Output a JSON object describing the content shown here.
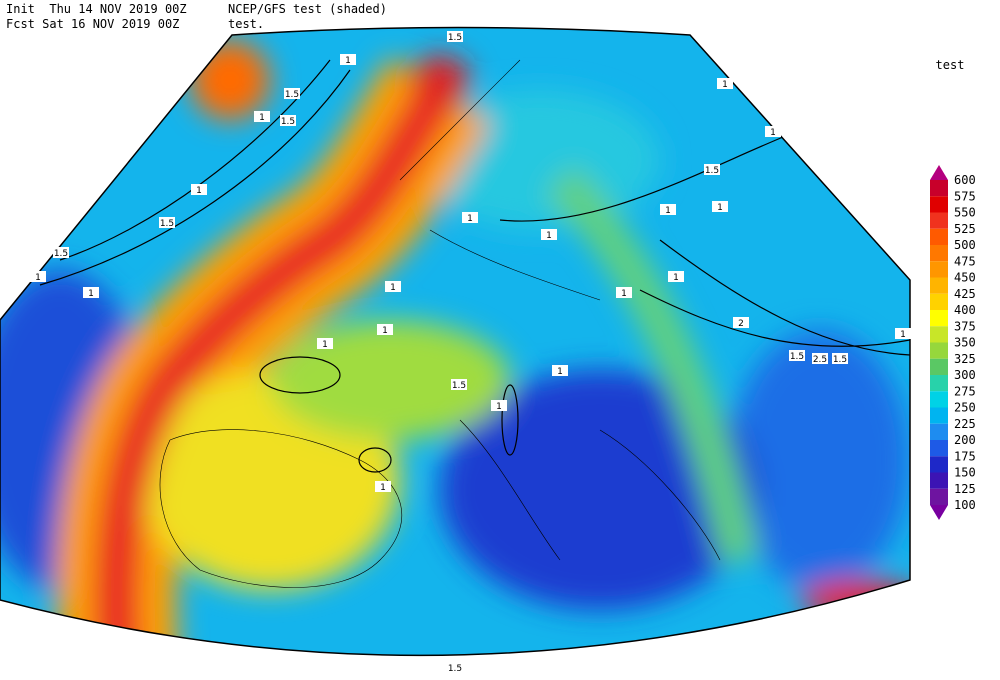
{
  "header": {
    "init": "Init  Thu 14 NOV 2019 00Z",
    "fcst": "Fcst Sat 16 NOV 2019 00Z",
    "shaded_field": "NCEP/GFS test (shaded)",
    "contour_field": "test."
  },
  "colorbar": {
    "title": "test",
    "levels": [
      600,
      575,
      550,
      525,
      500,
      475,
      450,
      425,
      400,
      375,
      350,
      325,
      300,
      275,
      250,
      225,
      200,
      175,
      150,
      125,
      100
    ],
    "colors": [
      "#b4007f",
      "#c8002a",
      "#e00000",
      "#f0321e",
      "#ff5a00",
      "#ff7800",
      "#ff9600",
      "#ffb400",
      "#ffd200",
      "#ffff00",
      "#c8e628",
      "#96d73c",
      "#5ac864",
      "#28d2aa",
      "#00d2e6",
      "#00b4f0",
      "#1e8cf0",
      "#1e5ae6",
      "#1e28c8",
      "#3c14b4",
      "#6e14a0",
      "#7800a0"
    ]
  },
  "contour_labels": [
    1.5,
    1,
    1.5,
    1,
    1.5,
    1,
    1.5,
    1.5,
    1,
    1,
    1,
    1,
    1,
    1,
    1,
    1.5,
    1,
    1,
    1,
    1,
    1,
    2,
    1.5,
    2.5,
    1.5,
    1,
    1,
    1,
    1.5,
    1,
    1,
    1.5
  ]
}
